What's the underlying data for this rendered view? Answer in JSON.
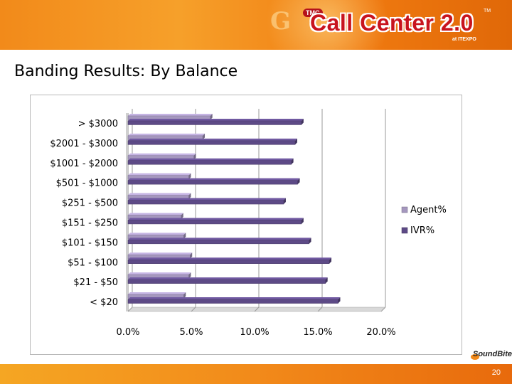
{
  "header": {
    "logo_prefix": "TMC",
    "logo_title": "Call Center 2.0",
    "logo_tm": "TM",
    "logo_subtitle": "at ITEXPO"
  },
  "slide_title": "Banding Results: By Balance",
  "chart_data": {
    "type": "bar",
    "orientation": "horizontal",
    "style": "3d",
    "categories": [
      "> $3000",
      "$2001 - $3000",
      "$1001 - $2000",
      "$501 - $1000",
      "$251 - $500",
      "$151 - $250",
      "$101 - $150",
      "$51 - $100",
      "$21 - $50",
      "< $20"
    ],
    "series": [
      {
        "name": "Agent%",
        "color": "#a597be",
        "values": [
          6.5,
          5.9,
          5.2,
          4.8,
          4.8,
          4.2,
          4.4,
          4.9,
          4.8,
          4.4
        ]
      },
      {
        "name": "IVR%",
        "color": "#5d4a86",
        "values": [
          13.7,
          13.2,
          12.9,
          13.4,
          12.3,
          13.7,
          14.3,
          15.9,
          15.6,
          16.6
        ]
      }
    ],
    "xlim": [
      0,
      20
    ],
    "xticks": [
      "0.0%",
      "5.0%",
      "10.0%",
      "15.0%",
      "20.0%"
    ],
    "gridlines": true,
    "legend": "right"
  },
  "footer": {
    "page_number": "20",
    "brand_name": "SoundBite"
  }
}
